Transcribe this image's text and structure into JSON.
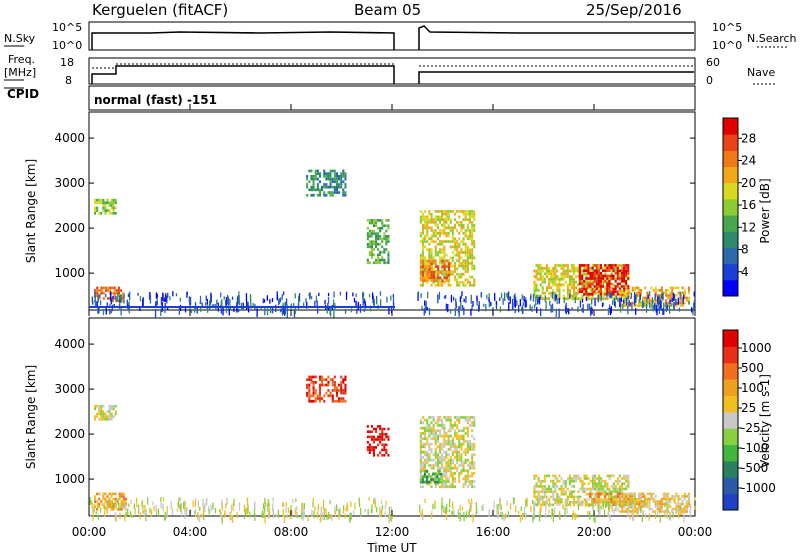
{
  "header": {
    "station": "Kerguelen (fitACF)",
    "beam": "Beam 05",
    "date": "25/Sep/2016"
  },
  "mini_panels": {
    "nsky_label": "N.Sky",
    "nsearch_label": "N.Search",
    "freq_label_line1": "Freq.",
    "freq_label_line2": "[MHz]",
    "nave_label": "Nave",
    "cpid_label": "CPID",
    "cpid_text": "normal (fast) -151",
    "noise_ticks_left": [
      "10^5",
      "10^0"
    ],
    "noise_ticks_right": [
      "10^5",
      "10^0"
    ],
    "freq_ticks": [
      "18",
      "8"
    ],
    "nave_ticks": [
      "60",
      "0"
    ]
  },
  "time_axis": {
    "label": "Time UT",
    "ticks": [
      "00:00",
      "04:00",
      "08:00",
      "12:00",
      "16:00",
      "20:00",
      "00:00"
    ]
  },
  "chart_data": [
    {
      "type": "heatmap",
      "name": "power",
      "ylabel": "Slant Range [km]",
      "yticks": [
        1000,
        2000,
        3000,
        4000
      ],
      "ylim": [
        180,
        4580
      ],
      "xlim_hours": [
        0,
        24
      ],
      "colorbar_label": "Power [dB]",
      "colorbar_ticks": [
        "28",
        "24",
        "20",
        "16",
        "12",
        "8",
        "4"
      ],
      "colors": [
        "#0000ff",
        "#1a3fd4",
        "#2b6aa8",
        "#2f8a6a",
        "#45a84a",
        "#8ccc30",
        "#d8d820",
        "#f0a818",
        "#f07818",
        "#e84418",
        "#e00000"
      ],
      "regions": [
        {
          "t": [
            0.2,
            1.1
          ],
          "r": [
            2300,
            2650
          ],
          "level": 5
        },
        {
          "t": [
            0.2,
            1.4
          ],
          "r": [
            350,
            700
          ],
          "level": 8
        },
        {
          "t": [
            8.6,
            10.2
          ],
          "r": [
            2700,
            3300
          ],
          "level": 3
        },
        {
          "t": [
            11.0,
            11.9
          ],
          "r": [
            1200,
            2200
          ],
          "level": 4
        },
        {
          "t": [
            13.1,
            15.3
          ],
          "r": [
            700,
            2400
          ],
          "level": 6
        },
        {
          "t": [
            13.1,
            14.3
          ],
          "r": [
            800,
            1300
          ],
          "level": 8
        },
        {
          "t": [
            17.6,
            21.4
          ],
          "r": [
            400,
            1200
          ],
          "level": 6
        },
        {
          "t": [
            19.4,
            21.4
          ],
          "r": [
            500,
            1200
          ],
          "level": 10
        },
        {
          "t": [
            21.0,
            23.8
          ],
          "r": [
            250,
            700
          ],
          "level": 7
        }
      ]
    },
    {
      "type": "heatmap",
      "name": "velocity",
      "ylabel": "Slant Range [km]",
      "yticks": [
        1000,
        2000,
        3000,
        4000
      ],
      "ylim": [
        180,
        4580
      ],
      "xlim_hours": [
        0,
        24
      ],
      "colorbar_label": "Velocity [m s-1]",
      "colorbar_ticks": [
        "1000",
        "500",
        "100",
        "25",
        "-25",
        "-100",
        "-500",
        "-1000"
      ],
      "colors": [
        "#2040c8",
        "#2b5aa8",
        "#2b8060",
        "#40b840",
        "#88d040",
        "#c8c8c8",
        "#f0c020",
        "#f0a020",
        "#f07020",
        "#e83018",
        "#e00000"
      ],
      "regions": [
        {
          "t": [
            0.2,
            1.1
          ],
          "r": [
            2300,
            2650
          ],
          "level": 5
        },
        {
          "t": [
            0.2,
            1.5
          ],
          "r": [
            300,
            700
          ],
          "level": 7
        },
        {
          "t": [
            8.6,
            10.2
          ],
          "r": [
            2700,
            3300
          ],
          "level": 9
        },
        {
          "t": [
            11.0,
            11.9
          ],
          "r": [
            1500,
            2200
          ],
          "level": 10
        },
        {
          "t": [
            13.1,
            15.3
          ],
          "r": [
            800,
            2400
          ],
          "level": 5
        },
        {
          "t": [
            13.1,
            14.0
          ],
          "r": [
            900,
            1200
          ],
          "level": 3
        },
        {
          "t": [
            17.6,
            21.4
          ],
          "r": [
            400,
            1100
          ],
          "level": 5
        },
        {
          "t": [
            19.8,
            22.0
          ],
          "r": [
            400,
            700
          ],
          "level": 7
        },
        {
          "t": [
            21.0,
            23.8
          ],
          "r": [
            250,
            700
          ],
          "level": 6
        }
      ]
    }
  ]
}
